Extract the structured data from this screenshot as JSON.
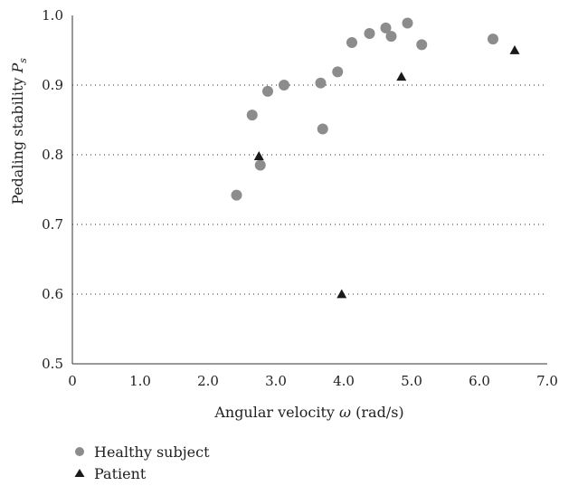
{
  "chart_data": {
    "type": "scatter",
    "xlabel_parts": [
      "Angular velocity ",
      "ω",
      " (rad/s)"
    ],
    "ylabel_parts": [
      "Pedaling stability ",
      "P",
      "s"
    ],
    "xlim": [
      0,
      7
    ],
    "ylim": [
      0.5,
      1.0
    ],
    "x_ticks": [
      "0",
      "1.0",
      "2.0",
      "3.0",
      "4.0",
      "5.0",
      "6.0",
      "7.0"
    ],
    "y_ticks": [
      "0.5",
      "0.6",
      "0.7",
      "0.8",
      "0.9",
      "1.0"
    ],
    "grid": "horizontal-dotted",
    "legend_position": "bottom-left",
    "series": [
      {
        "name": "Healthy subject",
        "marker": "circle",
        "color": "#8c8c8c",
        "points": [
          [
            2.42,
            0.742
          ],
          [
            2.65,
            0.857
          ],
          [
            2.77,
            0.785
          ],
          [
            2.88,
            0.891
          ],
          [
            3.12,
            0.9
          ],
          [
            3.66,
            0.903
          ],
          [
            3.69,
            0.837
          ],
          [
            3.91,
            0.919
          ],
          [
            4.12,
            0.961
          ],
          [
            4.38,
            0.974
          ],
          [
            4.62,
            0.982
          ],
          [
            4.7,
            0.97
          ],
          [
            4.94,
            0.989
          ],
          [
            5.15,
            0.958
          ],
          [
            6.2,
            0.966
          ]
        ]
      },
      {
        "name": "Patient",
        "marker": "triangle",
        "color": "#1a1a1a",
        "points": [
          [
            2.75,
            0.798
          ],
          [
            3.97,
            0.6
          ],
          [
            4.85,
            0.912
          ],
          [
            6.52,
            0.95
          ]
        ]
      }
    ]
  }
}
